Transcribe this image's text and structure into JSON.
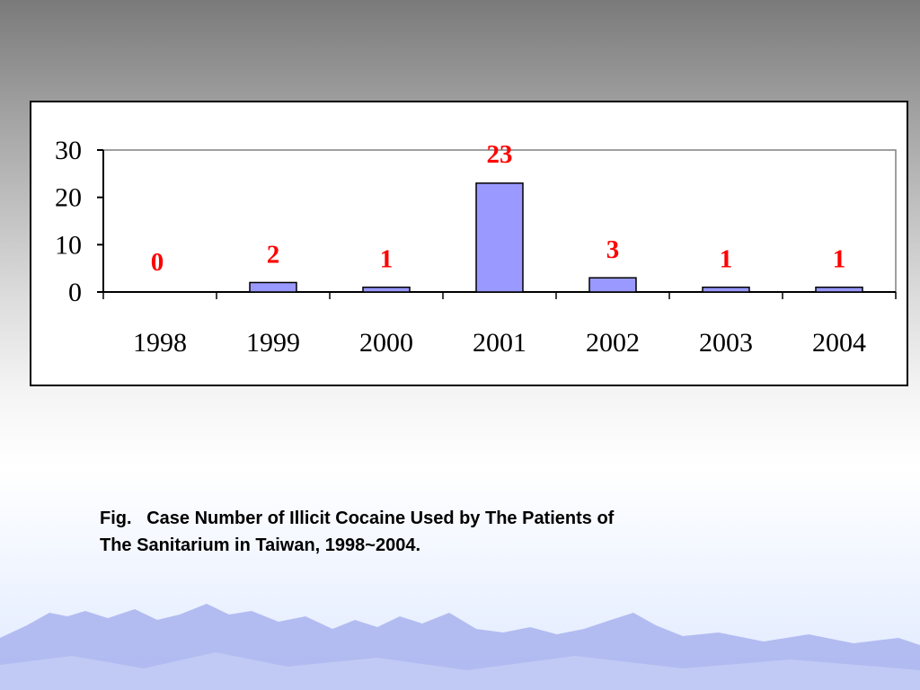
{
  "chart_data": {
    "type": "bar",
    "categories": [
      "1998",
      "1999",
      "2000",
      "2001",
      "2002",
      "2003",
      "2004"
    ],
    "values": [
      0,
      2,
      1,
      23,
      3,
      1,
      1
    ],
    "data_labels": [
      "0",
      "2",
      "1",
      "23",
      "3",
      "1",
      "1"
    ],
    "title": "",
    "xlabel": "",
    "ylabel": "",
    "ylim": [
      0,
      30
    ],
    "yticks": [
      0,
      10,
      20,
      30
    ],
    "grid": false,
    "legend": "none",
    "colors": {
      "bar_fill": "#9999ff",
      "bar_stroke": "#000000",
      "data_label": "#ff0000",
      "plot_border": "#808080"
    }
  },
  "caption": {
    "line1": "Fig.   Case Number of Illicit Cocaine Used by The Patients of",
    "line2": "The Sanitarium in Taiwan, 1998~2004."
  },
  "background": {
    "top_color": "#7a7a7a",
    "bottom_color": "#dfe9ff",
    "mountain_color": "#a9b3ee"
  }
}
